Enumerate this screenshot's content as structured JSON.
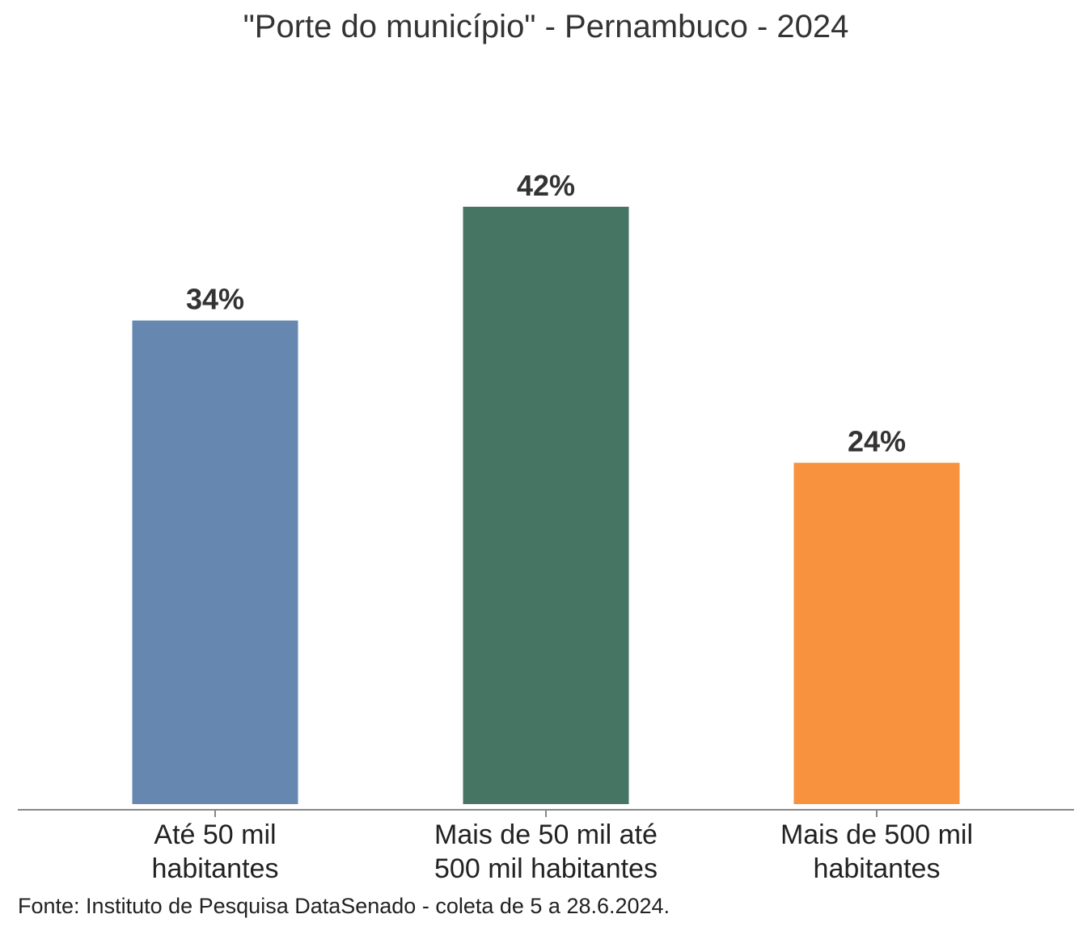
{
  "chart_data": {
    "type": "bar",
    "title": "\"Porte do município\" - Pernambuco - 2024",
    "categories": [
      [
        "Até 50 mil",
        "habitantes"
      ],
      [
        "Mais de 50 mil até",
        "500 mil habitantes"
      ],
      [
        "Mais de 500 mil",
        "habitantes"
      ]
    ],
    "values": [
      34,
      42,
      24
    ],
    "value_labels": [
      "34%",
      "42%",
      "24%"
    ],
    "colors": [
      "#6688B0",
      "#467564",
      "#F9923E"
    ],
    "xlabel": "",
    "ylabel": "",
    "ylim": [
      0,
      50
    ],
    "grid": false,
    "axis_color": "#888888"
  },
  "source": "Fonte: Instituto de Pesquisa DataSenado - coleta de 5 a 28.6.2024."
}
